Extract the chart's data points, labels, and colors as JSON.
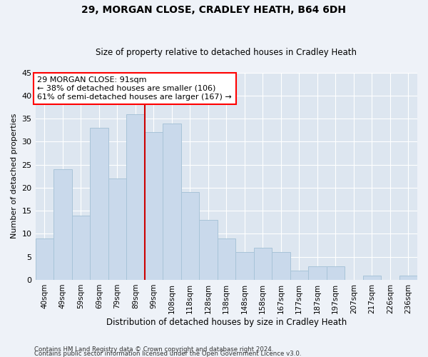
{
  "title": "29, MORGAN CLOSE, CRADLEY HEATH, B64 6DH",
  "subtitle": "Size of property relative to detached houses in Cradley Heath",
  "xlabel": "Distribution of detached houses by size in Cradley Heath",
  "ylabel": "Number of detached properties",
  "footer1": "Contains HM Land Registry data © Crown copyright and database right 2024.",
  "footer2": "Contains public sector information licensed under the Open Government Licence v3.0.",
  "annotation_line1": "29 MORGAN CLOSE: 91sqm",
  "annotation_line2": "← 38% of detached houses are smaller (106)",
  "annotation_line3": "61% of semi-detached houses are larger (167) →",
  "bar_color": "#c9d9eb",
  "bar_edge_color": "#a8c4d8",
  "vline_color": "#cc0000",
  "categories": [
    "40sqm",
    "49sqm",
    "59sqm",
    "69sqm",
    "79sqm",
    "89sqm",
    "99sqm",
    "108sqm",
    "118sqm",
    "128sqm",
    "138sqm",
    "148sqm",
    "158sqm",
    "167sqm",
    "177sqm",
    "187sqm",
    "197sqm",
    "207sqm",
    "217sqm",
    "226sqm",
    "236sqm"
  ],
  "values": [
    9,
    24,
    14,
    33,
    22,
    36,
    32,
    34,
    19,
    13,
    9,
    6,
    7,
    6,
    2,
    3,
    3,
    0,
    1,
    0,
    1
  ],
  "ylim": [
    0,
    45
  ],
  "yticks": [
    0,
    5,
    10,
    15,
    20,
    25,
    30,
    35,
    40,
    45
  ],
  "vline_x_index": 5,
  "bg_color": "#eef2f8",
  "plot_bg_color": "#dde6f0"
}
